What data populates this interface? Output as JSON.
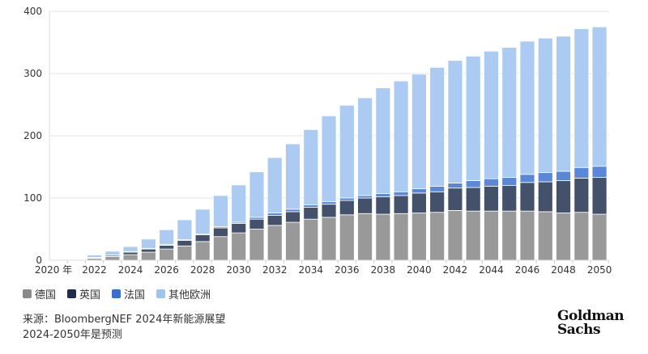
{
  "chart_data": {
    "type": "bar",
    "stacked": true,
    "x": [
      2020,
      2021,
      2022,
      2023,
      2024,
      2025,
      2026,
      2027,
      2028,
      2029,
      2030,
      2031,
      2032,
      2033,
      2034,
      2035,
      2036,
      2037,
      2038,
      2039,
      2040,
      2041,
      2042,
      2043,
      2044,
      2045,
      2046,
      2047,
      2048,
      2049,
      2050
    ],
    "x_tick_labels": [
      "2020 年",
      "2022",
      "2024",
      "2026",
      "2028",
      "2030",
      "2032",
      "2034",
      "2036",
      "2038",
      "2040",
      "2042",
      "2044",
      "2046",
      "2048",
      "2050"
    ],
    "y_ticks": [
      "0",
      "100",
      "200",
      "300",
      "400"
    ],
    "ylim": [
      0,
      400
    ],
    "grid": true,
    "legend_position": "bottom-left",
    "series": [
      {
        "name": "德国",
        "color": "#999999",
        "values": [
          1,
          1,
          3,
          6,
          9,
          13,
          18,
          23,
          30,
          38,
          44,
          50,
          56,
          61,
          66,
          69,
          73,
          75,
          74,
          75,
          76,
          77,
          80,
          79,
          79,
          79,
          79,
          78,
          76,
          77,
          74
        ]
      },
      {
        "name": "英国",
        "color": "#44516a",
        "values": [
          0.5,
          1,
          1,
          2,
          4,
          5,
          6,
          9,
          11,
          14,
          15,
          16,
          16,
          17,
          19,
          21,
          23,
          25,
          28,
          29,
          32,
          33,
          36,
          38,
          40,
          41,
          46,
          48,
          52,
          55,
          59
        ]
      },
      {
        "name": "法国",
        "color": "#5b87d9",
        "values": [
          0,
          0,
          0.5,
          0.5,
          1,
          1,
          1,
          1,
          1,
          2,
          2,
          3,
          4,
          4,
          4,
          4,
          4,
          4,
          5,
          6,
          7,
          9,
          8,
          11,
          12,
          13,
          13,
          15,
          15,
          17,
          18
        ]
      },
      {
        "name": "其他欧洲",
        "color": "#abcbf2",
        "values": [
          0.5,
          0,
          4,
          6,
          8,
          15,
          24,
          32,
          40,
          50,
          60,
          73,
          89,
          105,
          121,
          138,
          149,
          157,
          170,
          178,
          184,
          191,
          197,
          200,
          205,
          209,
          214,
          216,
          217,
          223,
          224
        ]
      }
    ]
  },
  "legend_swatch_colors": [
    "#8a8a8a",
    "#1f2d4d",
    "#3a6fd0",
    "#a0c4f0"
  ],
  "source": {
    "line1": "来源：BloombergNEF 2024年新能源展望",
    "line2": "2024-2050年是预测"
  },
  "logo": {
    "line1": "Goldman",
    "line2": "Sachs"
  }
}
